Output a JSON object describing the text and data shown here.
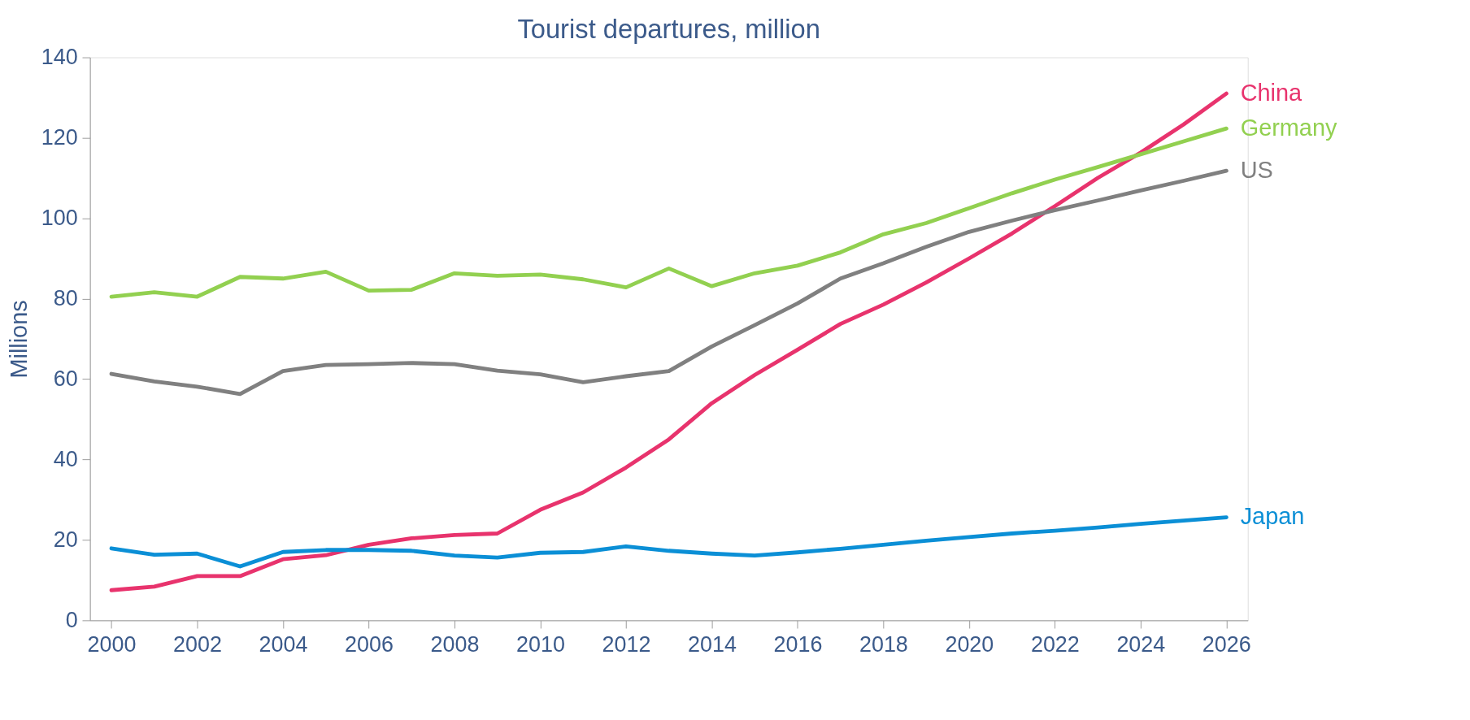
{
  "chart_data": {
    "type": "line",
    "title": "Tourist departures, million",
    "ylabel": "Millions",
    "x": [
      2000,
      2001,
      2002,
      2003,
      2004,
      2005,
      2006,
      2007,
      2008,
      2009,
      2010,
      2011,
      2012,
      2013,
      2014,
      2015,
      2016,
      2017,
      2018,
      2019,
      2020,
      2021,
      2022,
      2023,
      2024,
      2025,
      2026
    ],
    "series": [
      {
        "name": "China",
        "color": "#e8336d",
        "values": [
          7.5,
          8.4,
          11,
          11,
          15.2,
          16.2,
          18.8,
          20.4,
          21.2,
          21.6,
          27.5,
          31.8,
          38,
          45,
          54,
          61,
          67.3,
          73.7,
          78.5,
          84,
          90,
          96.2,
          103,
          110,
          116.3,
          123.3,
          131
        ]
      },
      {
        "name": "Germany",
        "color": "#92d050",
        "values": [
          80.5,
          81.6,
          80.5,
          85.4,
          85,
          86.7,
          82,
          82.2,
          86.3,
          85.7,
          86,
          84.8,
          82.8,
          87.5,
          83.1,
          86.3,
          88.2,
          91.5,
          96,
          98.8,
          102.5,
          106.2,
          109.6,
          112.7,
          115.9,
          119.1,
          122.3
        ]
      },
      {
        "name": "US",
        "color": "#808080",
        "values": [
          61.3,
          59.4,
          58.1,
          56.3,
          62,
          63.5,
          63.7,
          64,
          63.7,
          62.1,
          61.2,
          59.2,
          60.7,
          62,
          68.1,
          73.4,
          78.8,
          85,
          88.8,
          92.9,
          96.6,
          99.4,
          102,
          104.4,
          106.9,
          109.3,
          111.8
        ]
      },
      {
        "name": "Japan",
        "color": "#0b8fd6",
        "values": [
          17.9,
          16.3,
          16.6,
          13.4,
          17,
          17.5,
          17.5,
          17.3,
          16.1,
          15.6,
          16.8,
          17,
          18.4,
          17.3,
          16.6,
          16.1,
          16.9,
          17.8,
          18.8,
          19.8,
          20.7,
          21.6,
          22.3,
          23.1,
          24,
          24.8,
          25.6
        ]
      }
    ],
    "xlim": [
      1999.5,
      2026.5
    ],
    "xticks": [
      2000,
      2002,
      2004,
      2006,
      2008,
      2010,
      2012,
      2014,
      2016,
      2018,
      2020,
      2022,
      2024,
      2026
    ],
    "ylim": [
      0,
      140
    ],
    "yticks": [
      0,
      20,
      40,
      60,
      80,
      100,
      120,
      140
    ],
    "grid": false,
    "legend": false,
    "marker": "none",
    "line_style": "solid"
  }
}
